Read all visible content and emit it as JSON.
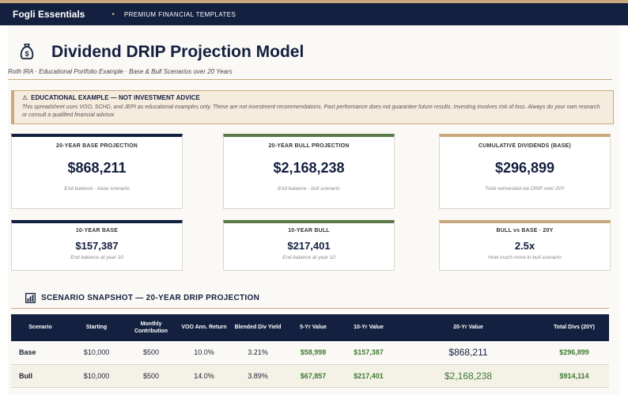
{
  "header": {
    "brand": "Fogli Essentials",
    "separator": "•",
    "tagline": "PREMIUM FINANCIAL TEMPLATES"
  },
  "page": {
    "title_icon": "money-bag-icon",
    "title": "Dividend DRIP Projection Model",
    "subtitle": "Roth IRA · Educational Portfolio Example · Base & Bull Scenarios over 20 Years"
  },
  "notice": {
    "icon": "warning-icon",
    "title": "EDUCATIONAL EXAMPLE — NOT INVESTMENT ADVICE",
    "body": "This spreadsheet uses VOO, SCHD, and JEPI as educational examples only. These are not investment recommendations. Past performance does not guarantee future results. Investing involves risk of loss. Always do your own research or consult a qualified financial advisor."
  },
  "cards_top": [
    {
      "label": "20-YEAR BASE PROJECTION",
      "value": "$868,211",
      "note": "End balance - base scenario",
      "accent": "#13203f"
    },
    {
      "label": "20-YEAR BULL PROJECTION",
      "value": "$2,168,238",
      "note": "End balance - bull scenario",
      "accent": "#5b7a4a"
    },
    {
      "label": "CUMULATIVE DIVIDENDS (BASE)",
      "value": "$296,899",
      "note": "Total reinvested via DRIP over 20Y",
      "accent": "#c9a97c"
    }
  ],
  "cards_bottom": [
    {
      "label": "10-YEAR BASE",
      "value": "$157,387",
      "note": "End balance at year 10",
      "accent": "#13203f"
    },
    {
      "label": "10-YEAR BULL",
      "value": "$217,401",
      "note": "End balance at year 10",
      "accent": "#5b7a4a"
    },
    {
      "label": "BULL vs BASE · 20Y",
      "value": "2.5x",
      "note": "How much more in bull scenario",
      "accent": "#c9a97c"
    }
  ],
  "snapshot": {
    "icon": "chart-icon",
    "title": "SCENARIO SNAPSHOT — 20-YEAR DRIP PROJECTION",
    "columns": [
      "Scenario",
      "Starting",
      "Monthly Contribution",
      "VOO Ann. Return",
      "Blended Div Yield",
      "5-Yr Value",
      "10-Yr Value",
      "20-Yr Value",
      "Total Divs (20Y)"
    ],
    "rows": [
      {
        "scenario": "Base",
        "starting": "$10,000",
        "monthly": "$500",
        "voo": "10.0%",
        "yield": "3.21%",
        "y5": "$58,998",
        "y10": "$157,387",
        "y20": "$868,211",
        "divs": "$296,899"
      },
      {
        "scenario": "Bull",
        "starting": "$10,000",
        "monthly": "$500",
        "voo": "14.0%",
        "yield": "3.89%",
        "y5": "$67,857",
        "y10": "$217,401",
        "y20": "$2,168,238",
        "divs": "$914,114"
      }
    ]
  },
  "colors": {
    "navy": "#13203f",
    "gold": "#c9a97c",
    "green": "#5b7a4a",
    "positive": "#3d7a33"
  }
}
